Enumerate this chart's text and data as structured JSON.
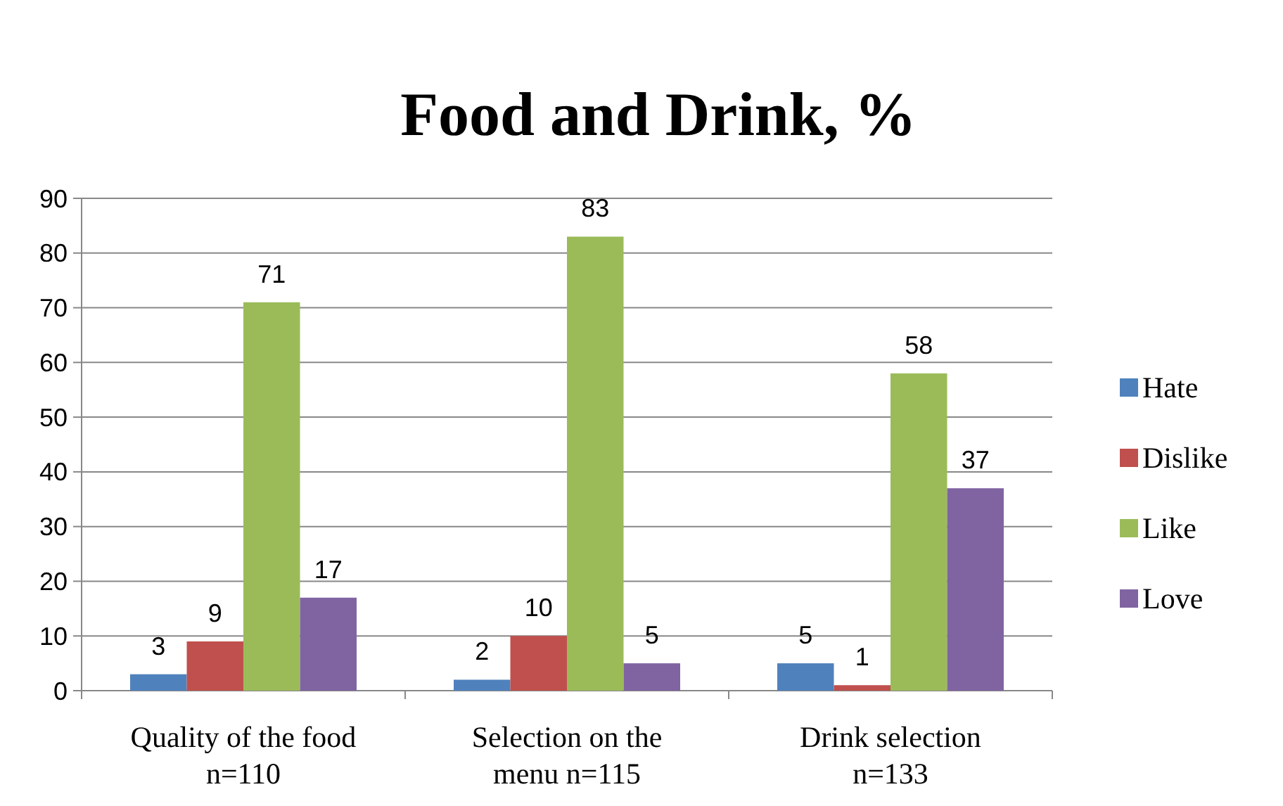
{
  "chart_data": {
    "type": "bar",
    "title": "Food and Drink, %",
    "categories": [
      "Quality of the food\nn=110",
      "Selection on the\nmenu n=115",
      "Drink selection\nn=133"
    ],
    "series": [
      {
        "name": "Hate",
        "color": "#4f81bd",
        "values": [
          3,
          2,
          5
        ]
      },
      {
        "name": "Dislike",
        "color": "#c0504d",
        "values": [
          9,
          10,
          1
        ]
      },
      {
        "name": "Like",
        "color": "#9bbb59",
        "values": [
          71,
          83,
          58
        ]
      },
      {
        "name": "Love",
        "color": "#8064a2",
        "values": [
          17,
          5,
          37
        ]
      }
    ],
    "ylim": [
      0,
      90
    ],
    "yticks": [
      0,
      10,
      20,
      30,
      40,
      50,
      60,
      70,
      80,
      90
    ],
    "grid": "y",
    "legend": "right",
    "data_labels": true
  }
}
